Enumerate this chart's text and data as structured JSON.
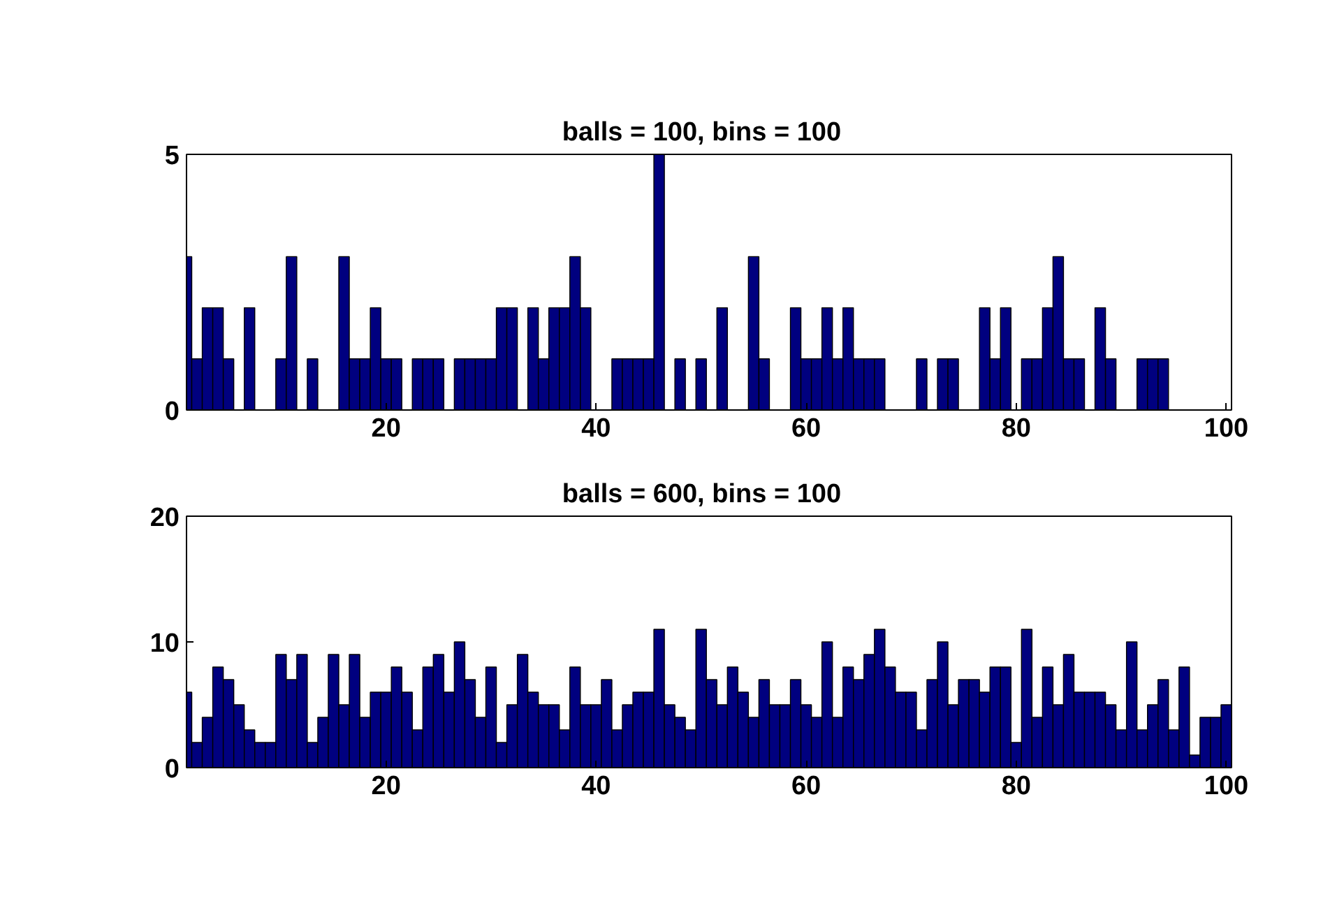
{
  "chart_data": [
    {
      "type": "histogram",
      "title": "balls = 100,   bins = 100",
      "color": "#00007f",
      "bins": [
        1,
        1.5,
        2.5,
        3.5,
        4.5,
        5.5,
        6.5,
        7.5,
        8.5,
        9.5,
        10.5,
        11.5,
        12.5,
        13.5,
        14.5,
        15.5,
        16.5,
        17.5,
        18.5,
        19.5,
        20.5,
        21.5,
        22.5,
        23.5,
        24.5,
        25.5,
        26.5,
        27.5,
        28.5,
        29.5,
        30.5,
        31.5,
        32.5,
        33.5,
        34.5,
        35.5,
        36.5,
        37.5,
        38.5,
        39.5,
        40.5,
        41.5,
        42.5,
        43.5,
        44.5,
        45.5,
        46.5,
        47.5,
        48.5,
        49.5,
        50.5,
        51.5,
        52.5,
        53.5,
        54.5,
        55.5,
        56.5,
        57.5,
        58.5,
        59.5,
        60.5,
        61.5,
        62.5,
        63.5,
        64.5,
        65.5,
        66.5,
        67.5,
        68.5,
        69.5,
        70.5,
        71.5,
        72.5,
        73.5,
        74.5,
        75.5,
        76.5,
        77.5,
        78.5,
        79.5,
        80.5,
        81.5,
        82.5,
        83.5,
        84.5,
        85.5,
        86.5,
        87.5,
        88.5,
        89.5,
        90.5,
        91.5,
        92.5,
        93.5,
        94.5,
        95.5,
        96.5,
        97.5,
        98.5,
        99.5,
        100.5
      ],
      "values": [
        3,
        1,
        2,
        2,
        1,
        0,
        2,
        0,
        0,
        1,
        3,
        0,
        1,
        0,
        0,
        3,
        1,
        1,
        2,
        1,
        1,
        0,
        1,
        1,
        1,
        0,
        1,
        1,
        1,
        1,
        2,
        2,
        0,
        2,
        1,
        2,
        2,
        3,
        2,
        0,
        0,
        1,
        1,
        1,
        1,
        5,
        0,
        1,
        0,
        1,
        0,
        2,
        0,
        0,
        3,
        1,
        0,
        0,
        2,
        1,
        1,
        2,
        1,
        2,
        1,
        1,
        1,
        0,
        0,
        0,
        1,
        0,
        1,
        1,
        0,
        0,
        2,
        1,
        2,
        0,
        1,
        1,
        2,
        3,
        1,
        1,
        0,
        2,
        1,
        0,
        0,
        1,
        1,
        1,
        0,
        0,
        0,
        0,
        0,
        0
      ],
      "xlim": [
        1,
        100.5
      ],
      "xticks": [
        20,
        40,
        60,
        80,
        100
      ],
      "ylim": [
        0,
        5
      ],
      "yticks": [
        0,
        5
      ]
    },
    {
      "type": "histogram",
      "title": "balls = 600,   bins = 100",
      "color": "#00007f",
      "bins": [
        1,
        1.5,
        2.5,
        3.5,
        4.5,
        5.5,
        6.5,
        7.5,
        8.5,
        9.5,
        10.5,
        11.5,
        12.5,
        13.5,
        14.5,
        15.5,
        16.5,
        17.5,
        18.5,
        19.5,
        20.5,
        21.5,
        22.5,
        23.5,
        24.5,
        25.5,
        26.5,
        27.5,
        28.5,
        29.5,
        30.5,
        31.5,
        32.5,
        33.5,
        34.5,
        35.5,
        36.5,
        37.5,
        38.5,
        39.5,
        40.5,
        41.5,
        42.5,
        43.5,
        44.5,
        45.5,
        46.5,
        47.5,
        48.5,
        49.5,
        50.5,
        51.5,
        52.5,
        53.5,
        54.5,
        55.5,
        56.5,
        57.5,
        58.5,
        59.5,
        60.5,
        61.5,
        62.5,
        63.5,
        64.5,
        65.5,
        66.5,
        67.5,
        68.5,
        69.5,
        70.5,
        71.5,
        72.5,
        73.5,
        74.5,
        75.5,
        76.5,
        77.5,
        78.5,
        79.5,
        80.5,
        81.5,
        82.5,
        83.5,
        84.5,
        85.5,
        86.5,
        87.5,
        88.5,
        89.5,
        90.5,
        91.5,
        92.5,
        93.5,
        94.5,
        95.5,
        96.5,
        97.5,
        98.5,
        99.5,
        100.5
      ],
      "values": [
        6,
        2,
        4,
        8,
        7,
        5,
        3,
        2,
        2,
        9,
        7,
        9,
        2,
        4,
        9,
        5,
        9,
        4,
        6,
        6,
        8,
        6,
        3,
        8,
        9,
        6,
        10,
        7,
        4,
        8,
        2,
        5,
        9,
        6,
        5,
        5,
        3,
        8,
        5,
        5,
        7,
        3,
        5,
        6,
        6,
        11,
        5,
        4,
        3,
        11,
        7,
        5,
        8,
        6,
        4,
        7,
        5,
        5,
        7,
        5,
        4,
        10,
        4,
        8,
        7,
        9,
        11,
        8,
        6,
        6,
        3,
        7,
        10,
        5,
        7,
        7,
        6,
        8,
        8,
        2,
        11,
        4,
        8,
        5,
        9,
        6,
        6,
        6,
        5,
        3,
        10,
        3,
        5,
        7,
        3,
        8,
        1,
        4,
        4,
        5
      ],
      "xlim": [
        1,
        100.5
      ],
      "xticks": [
        20,
        40,
        60,
        80,
        100
      ],
      "ylim": [
        0,
        20
      ],
      "yticks": [
        0,
        10,
        20
      ]
    }
  ]
}
